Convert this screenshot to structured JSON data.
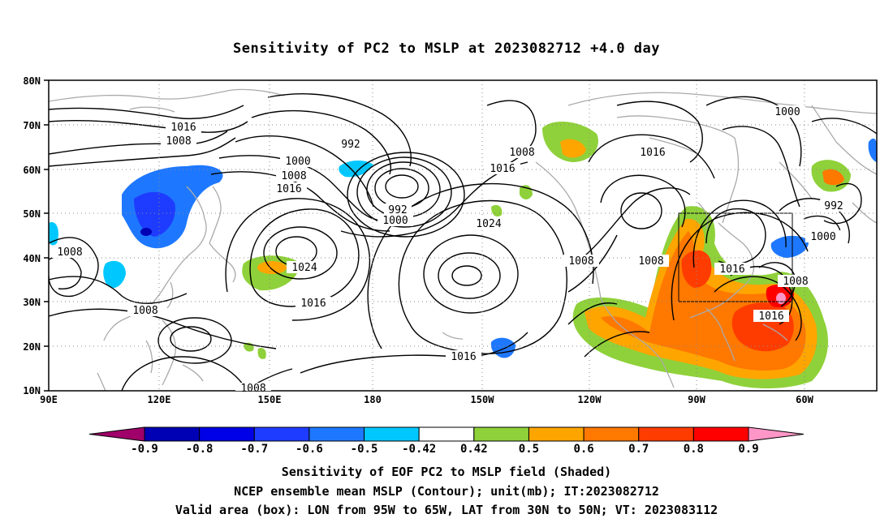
{
  "title": "Sensitivity of PC2 to MSLP at 2023082712 +4.0 day",
  "map": {
    "lat_labels": [
      "80N",
      "70N",
      "60N",
      "50N",
      "40N",
      "30N",
      "20N",
      "10N"
    ],
    "lon_labels": [
      "90E",
      "120E",
      "150E",
      "180",
      "150W",
      "120W",
      "90W",
      "60W"
    ],
    "lon_range": [
      "90E",
      "90W... to 50W"
    ],
    "valid_box": {
      "lon_from": "95W",
      "lon_to": "65W",
      "lat_from": "30N",
      "lat_to": "50N"
    },
    "contour_labels": [
      "1016",
      "1008",
      "992",
      "1000",
      "1008",
      "1016",
      "992",
      "1000",
      "1024",
      "1008",
      "1016",
      "1008",
      "1016",
      "1000",
      "992",
      "1000",
      "1008",
      "1016",
      "1016",
      "1008",
      "1008",
      "1024",
      "1008",
      "1016"
    ]
  },
  "colorbar": {
    "labels": [
      "-0.9",
      "-0.8",
      "-0.7",
      "-0.6",
      "-0.5",
      "-0.42",
      "0.42",
      "0.5",
      "0.6",
      "0.7",
      "0.8",
      "0.9"
    ],
    "colors": [
      "#a0006a",
      "#0000b4",
      "#0000e6",
      "#1e3cff",
      "#1e78ff",
      "#00c8ff",
      "#ffffff",
      "#8fd13a",
      "#ffa500",
      "#ff7800",
      "#ff3c00",
      "#ff0000",
      "#ff96c8"
    ]
  },
  "captions": {
    "line1": "Sensitivity of EOF PC2 to MSLP field (Shaded)",
    "line2": "NCEP ensemble mean MSLP (Contour); unit(mb); IT:2023082712",
    "line3": "Valid area (box): LON from 95W to 65W, LAT from 30N to 50N; VT: 2023083112"
  }
}
